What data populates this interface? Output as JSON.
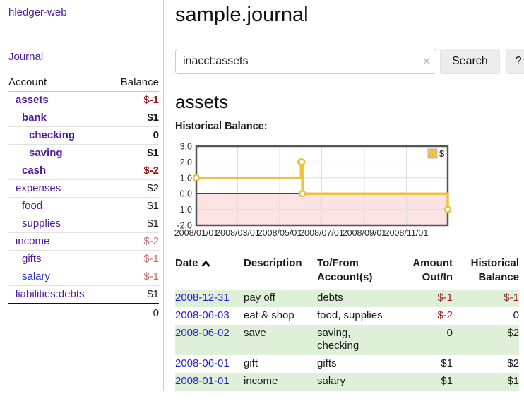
{
  "app": {
    "title": "hledger-web",
    "nav_journal": "Journal"
  },
  "sidebar": {
    "header": {
      "account": "Account",
      "balance": "Balance"
    },
    "accounts": [
      {
        "name": "assets",
        "balance": "$-1",
        "depth": 1
      },
      {
        "name": "bank",
        "balance": "$1",
        "depth": 2
      },
      {
        "name": "checking",
        "balance": "0",
        "depth": 3
      },
      {
        "name": "saving",
        "balance": "$1",
        "depth": 3
      },
      {
        "name": "cash",
        "balance": "$-2",
        "depth": 2
      },
      {
        "name": "expenses",
        "balance": "$2",
        "depth": 1
      },
      {
        "name": "food",
        "balance": "$1",
        "depth": 2
      },
      {
        "name": "supplies",
        "balance": "$1",
        "depth": 2
      },
      {
        "name": "income",
        "balance": "$-2",
        "depth": 1
      },
      {
        "name": "gifts",
        "balance": "$-1",
        "depth": 2
      },
      {
        "name": "salary",
        "balance": "$-1",
        "depth": 2
      },
      {
        "name": "liabilities:debts",
        "balance": "$1",
        "depth": 1
      }
    ],
    "total": "0"
  },
  "main": {
    "title": "sample.journal",
    "search": {
      "query": "inacct:assets",
      "clear_icon": "×",
      "button": "Search",
      "help_button": "?"
    },
    "account_heading": "assets",
    "chart_label": "Historical Balance:"
  },
  "chart_data": {
    "type": "line",
    "title": "Historical Balance:",
    "series": [
      {
        "name": "$",
        "color": "#EDC240",
        "step": true,
        "points": [
          {
            "date": "2008-01-01",
            "day": 0,
            "value": 1
          },
          {
            "date": "2008-06-01",
            "day": 152,
            "value": 2
          },
          {
            "date": "2008-06-02",
            "day": 153,
            "value": 2
          },
          {
            "date": "2008-06-03",
            "day": 154,
            "value": 0
          },
          {
            "date": "2008-12-31",
            "day": 365,
            "value": -1
          }
        ]
      }
    ],
    "x_axis": {
      "min_day": 0,
      "max_day": 365,
      "ticks": [
        {
          "day": 0,
          "label": "2008/01/01"
        },
        {
          "day": 60,
          "label": "2008/03/01"
        },
        {
          "day": 121,
          "label": "2008/05/01"
        },
        {
          "day": 182,
          "label": "2008/07/01"
        },
        {
          "day": 244,
          "label": "2008/09/01"
        },
        {
          "day": 305,
          "label": "2008/11/01"
        }
      ]
    },
    "y_axis": {
      "min": -2,
      "max": 3,
      "ticks": [
        3,
        2,
        1,
        0,
        -1,
        -2
      ],
      "tick_labels": [
        "3.0",
        "2.0",
        "1.0",
        "0.0",
        "-1.0",
        "-2.0"
      ]
    },
    "grid": true,
    "legend": {
      "label": "$",
      "position": "top-right"
    },
    "negative_region_color": "#fbe3e3",
    "zero_line_color": "#a40000",
    "border_color": "#545454"
  },
  "register": {
    "headers": {
      "date": "Date",
      "description": "Description",
      "account": "To/From Account(s)",
      "amount": "Amount Out/In",
      "balance": "Historical Balance"
    },
    "rows": [
      {
        "date": "2008-12-31",
        "description": "pay off",
        "accounts": "debts",
        "amount": "$-1",
        "balance": "$-1"
      },
      {
        "date": "2008-06-03",
        "description": "eat & shop",
        "accounts": "food, supplies",
        "amount": "$-2",
        "balance": "0"
      },
      {
        "date": "2008-06-02",
        "description": "save",
        "accounts": "saving, checking",
        "amount": "0",
        "balance": "$2"
      },
      {
        "date": "2008-06-01",
        "description": "gift",
        "accounts": "gifts",
        "amount": "$1",
        "balance": "$2"
      },
      {
        "date": "2008-01-01",
        "description": "income",
        "accounts": "salary",
        "amount": "$1",
        "balance": "$1"
      }
    ]
  }
}
